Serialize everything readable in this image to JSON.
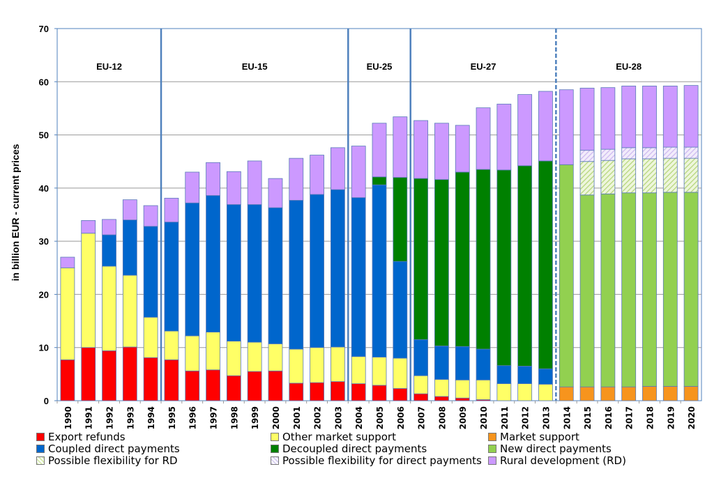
{
  "chart_data": {
    "type": "bar",
    "stacked": true,
    "title": "",
    "xlabel": "",
    "ylabel": "in billion EUR - current prices",
    "ylim": [
      0,
      70
    ],
    "yticks": [
      0,
      10,
      20,
      30,
      40,
      50,
      60,
      70
    ],
    "grid": true,
    "legend_position": "bottom",
    "categories": [
      "1990",
      "1991",
      "1992",
      "1993",
      "1994",
      "1995",
      "1996",
      "1997",
      "1998",
      "1999",
      "2000",
      "2001",
      "2002",
      "2003",
      "2004",
      "2005",
      "2006",
      "2007",
      "2008",
      "2009",
      "2010",
      "2011",
      "2012",
      "2013",
      "2014",
      "2015",
      "2016",
      "2017",
      "2018",
      "2019",
      "2020"
    ],
    "periods": [
      {
        "label": "EU-12",
        "from": "1990",
        "to": "1994"
      },
      {
        "label": "EU-15",
        "from": "1995",
        "to": "2003"
      },
      {
        "label": "EU-25",
        "from": "2004",
        "to": "2006"
      },
      {
        "label": "EU-27",
        "from": "2007",
        "to": "2013"
      },
      {
        "label": "EU-28",
        "from": "2014",
        "to": "2020",
        "dashed_separator": true
      }
    ],
    "series": [
      {
        "name": "Export refunds",
        "color": "#ff0000",
        "values": [
          7.7,
          10.0,
          9.4,
          10.1,
          8.1,
          7.7,
          5.6,
          5.8,
          4.7,
          5.5,
          5.6,
          3.3,
          3.4,
          3.6,
          3.2,
          2.9,
          2.3,
          1.3,
          0.8,
          0.5,
          0.2,
          0,
          0,
          0,
          0,
          0,
          0,
          0,
          0,
          0,
          0
        ]
      },
      {
        "name": "Other market support",
        "color": "#ffff66",
        "values": [
          17.3,
          21.5,
          15.9,
          13.5,
          7.6,
          5.4,
          6.6,
          7.1,
          6.5,
          5.5,
          5.1,
          6.4,
          6.6,
          6.5,
          5.1,
          5.3,
          5.7,
          3.4,
          3.2,
          3.4,
          3.7,
          3.2,
          3.2,
          3.1,
          0,
          0,
          0,
          0,
          0,
          0,
          0
        ]
      },
      {
        "name": "Market support",
        "color": "#f7941d",
        "values": [
          0,
          0,
          0,
          0,
          0,
          0,
          0,
          0,
          0,
          0,
          0,
          0,
          0,
          0,
          0,
          0,
          0,
          0,
          0,
          0,
          0,
          0,
          0,
          0,
          2.6,
          2.6,
          2.6,
          2.6,
          2.7,
          2.7,
          2.7
        ]
      },
      {
        "name": "Coupled direct payments",
        "color": "#0066cc",
        "values": [
          0,
          0,
          5.9,
          10.4,
          17.1,
          20.5,
          25.0,
          25.7,
          25.7,
          25.9,
          25.6,
          28.0,
          28.8,
          29.6,
          29.9,
          32.4,
          18.2,
          6.8,
          6.3,
          6.3,
          5.8,
          3.4,
          3.3,
          2.9,
          0,
          0,
          0,
          0,
          0,
          0,
          0
        ]
      },
      {
        "name": "Decoupled direct payments",
        "color": "#008000",
        "values": [
          0,
          0,
          0,
          0,
          0,
          0,
          0,
          0,
          0,
          0,
          0,
          0,
          0,
          0,
          0,
          1.5,
          15.8,
          30.3,
          31.3,
          32.8,
          33.8,
          36.8,
          37.7,
          39.1,
          0,
          0,
          0,
          0,
          0,
          0,
          0
        ]
      },
      {
        "name": "New direct payments",
        "color": "#92d050",
        "values": [
          0,
          0,
          0,
          0,
          0,
          0,
          0,
          0,
          0,
          0,
          0,
          0,
          0,
          0,
          0,
          0,
          0,
          0,
          0,
          0,
          0,
          0,
          0,
          0,
          41.8,
          36.1,
          36.3,
          36.5,
          36.4,
          36.5,
          36.5
        ]
      },
      {
        "name": "Possible flexibility for RD",
        "color": "#d8ecb0",
        "hatched": true,
        "values": [
          0,
          0,
          0,
          0,
          0,
          0,
          0,
          0,
          0,
          0,
          0,
          0,
          0,
          0,
          0,
          0,
          0,
          0,
          0,
          0,
          0,
          0,
          0,
          0,
          0,
          6.3,
          6.3,
          6.4,
          6.4,
          6.4,
          6.4
        ]
      },
      {
        "name": "Possible flexibility for direct payments",
        "color": "#d9d0f0",
        "hatched": true,
        "values": [
          0,
          0,
          0,
          0,
          0,
          0,
          0,
          0,
          0,
          0,
          0,
          0,
          0,
          0,
          0,
          0,
          0,
          0,
          0,
          0,
          0,
          0,
          0,
          0,
          0,
          2.1,
          2.1,
          2.1,
          2.1,
          2.1,
          2.1
        ]
      },
      {
        "name": "Rural development (RD)",
        "color": "#cc99ff",
        "values": [
          2.0,
          2.4,
          2.9,
          3.8,
          3.9,
          4.5,
          5.8,
          6.2,
          6.2,
          8.2,
          5.5,
          7.9,
          7.4,
          7.9,
          9.7,
          10.1,
          11.4,
          10.9,
          10.6,
          8.8,
          11.6,
          12.4,
          13.4,
          13.1,
          14.1,
          11.7,
          11.6,
          11.6,
          11.6,
          11.5,
          11.6
        ]
      }
    ]
  },
  "legend": {
    "items": [
      {
        "label": "Export refunds"
      },
      {
        "label": "Other market support"
      },
      {
        "label": "Market support"
      },
      {
        "label": "Coupled direct payments"
      },
      {
        "label": "Decoupled direct payments"
      },
      {
        "label": "New direct payments"
      },
      {
        "label": "Possible flexibility for RD"
      },
      {
        "label": "Possible flexibility for direct payments"
      },
      {
        "label": "Rural development (RD)"
      }
    ]
  }
}
